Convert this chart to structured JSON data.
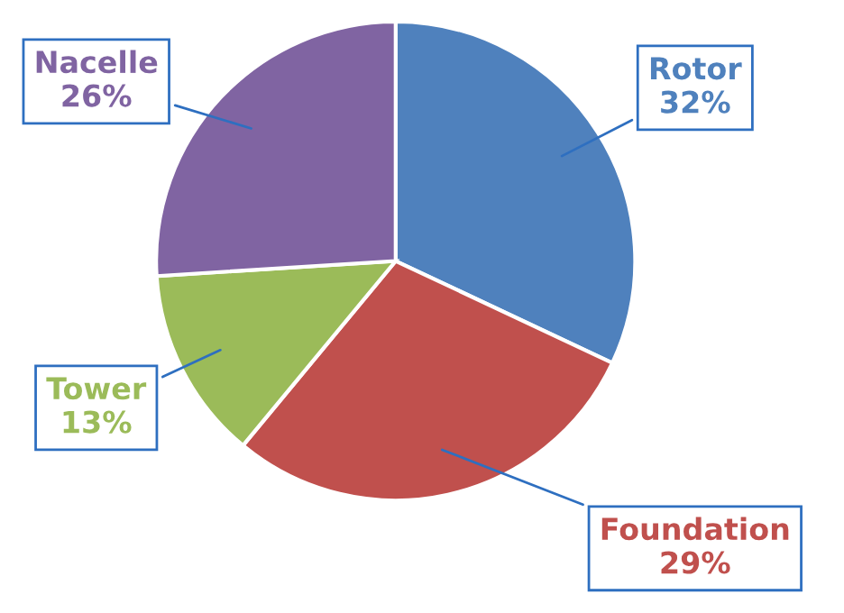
{
  "chart_data": {
    "type": "pie",
    "categories": [
      "Rotor",
      "Foundation",
      "Tower",
      "Nacelle"
    ],
    "values": [
      32,
      29,
      13,
      26
    ],
    "value_labels": [
      "32%",
      "29%",
      "13%",
      "26%"
    ],
    "colors": [
      "#4f81bd",
      "#c0504d",
      "#9bbb59",
      "#8064a2"
    ]
  }
}
